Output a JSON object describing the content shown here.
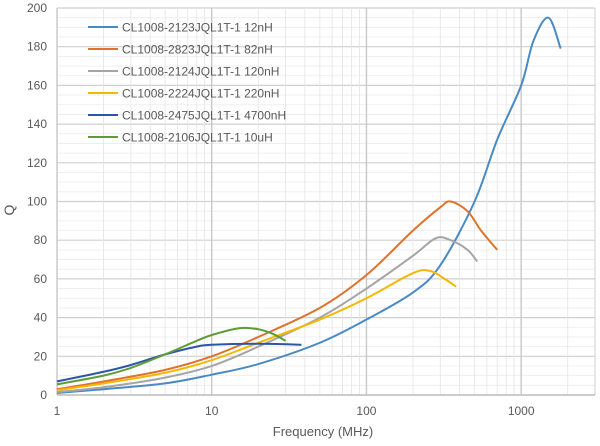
{
  "chart_data": {
    "type": "line",
    "title": "",
    "xlabel": "Frequency (MHz)",
    "ylabel": "Q",
    "x_scale": "log",
    "xlim": [
      1,
      3000
    ],
    "ylim": [
      0,
      200
    ],
    "x_ticks": [
      "1",
      "10",
      "100",
      "1000"
    ],
    "y_ticks": [
      "0",
      "20",
      "40",
      "60",
      "80",
      "100",
      "120",
      "140",
      "160",
      "180",
      "200"
    ],
    "grid": true,
    "legend_position": "top-left",
    "series": [
      {
        "name": "CL1008-2123JQL1T-1 12nH",
        "color": "#4a8ac4",
        "x": [
          1,
          2,
          5,
          10,
          20,
          50,
          100,
          200,
          300,
          500,
          700,
          1000,
          1200,
          1500,
          1800
        ],
        "y": [
          1,
          3,
          6,
          10.5,
          16,
          27,
          39,
          53,
          67,
          100,
          132,
          160,
          183,
          195,
          179
        ]
      },
      {
        "name": "CL1008-2823JQL1T-1 82nH",
        "color": "#e0722b",
        "x": [
          1,
          2,
          5,
          10,
          20,
          50,
          100,
          200,
          300,
          350,
          450,
          550,
          700
        ],
        "y": [
          3,
          7,
          13,
          20,
          30,
          45,
          62,
          85,
          97,
          100,
          95,
          85,
          75
        ]
      },
      {
        "name": "CL1008-2124JQL1T-1 120nH",
        "color": "#a5a5a5",
        "x": [
          1,
          2,
          5,
          10,
          20,
          50,
          100,
          200,
          280,
          350,
          450,
          520
        ],
        "y": [
          1.5,
          4,
          9,
          15,
          25,
          40,
          55,
          72,
          81,
          80,
          75,
          69
        ]
      },
      {
        "name": "CL1008-2224JQL1T-1 220nH",
        "color": "#f5b800",
        "x": [
          1,
          2,
          5,
          10,
          20,
          50,
          100,
          200,
          260,
          320,
          380
        ],
        "y": [
          2.5,
          6,
          11.5,
          18,
          27,
          39,
          50,
          63,
          64,
          60,
          56
        ]
      },
      {
        "name": "CL1008-2475JQL1T-1 4700nH",
        "color": "#2f56a6",
        "x": [
          1,
          2,
          3,
          5,
          8,
          10,
          20,
          38
        ],
        "y": [
          7,
          12,
          15.5,
          21,
          25,
          26,
          26.5,
          26
        ]
      },
      {
        "name": "CL1008-2106JQL1T-1 10uH",
        "color": "#5e9d36",
        "x": [
          1,
          2,
          3,
          5,
          8,
          10,
          15,
          20,
          25,
          30
        ],
        "y": [
          5.5,
          10,
          14,
          21,
          28,
          31,
          34.5,
          34,
          31.5,
          28
        ]
      }
    ]
  }
}
